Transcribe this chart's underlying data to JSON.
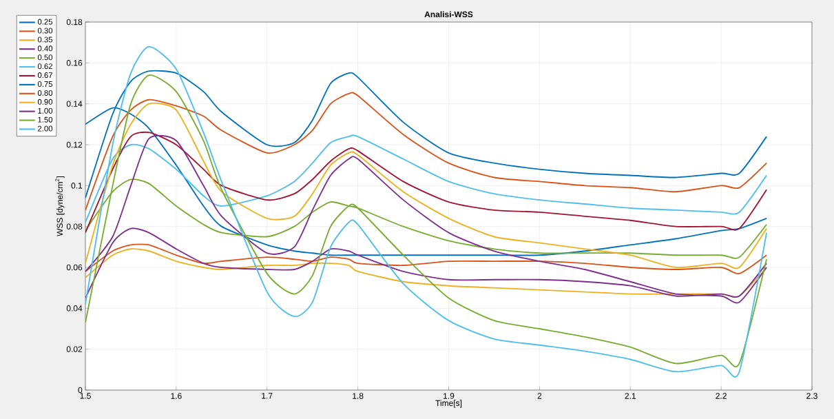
{
  "chart_data": {
    "type": "line",
    "title": "**Analisi-WSS**",
    "xlabel": "Time[s]",
    "ylabel": "WSS [dyne/cm$^{2}$]",
    "x": [
      1.5,
      1.53,
      1.55,
      1.57,
      1.6,
      1.63,
      1.65,
      1.7,
      1.73,
      1.75,
      1.77,
      1.79,
      1.8,
      1.85,
      1.9,
      1.95,
      2.0,
      2.05,
      2.1,
      2.15,
      2.2,
      2.22,
      2.25
    ],
    "xlim": [
      1.5,
      2.3
    ],
    "xticks": [
      1.5,
      1.6,
      1.7,
      1.8,
      1.9,
      2,
      2.1,
      2.2,
      2.3
    ],
    "ylim": [
      0,
      0.18
    ],
    "yticks": [
      0,
      0.02,
      0.04,
      0.06,
      0.08,
      0.1,
      0.12,
      0.14,
      0.16,
      0.18
    ],
    "grid": true,
    "legend": "top left",
    "series": [
      {
        "name": "0.25",
        "color": "#0072bd",
        "values": [
          0.13,
          0.138,
          0.135,
          0.128,
          0.11,
          0.09,
          0.08,
          0.071,
          0.068,
          0.067,
          0.066,
          0.066,
          0.066,
          0.066,
          0.066,
          0.066,
          0.066,
          0.068,
          0.071,
          0.074,
          0.078,
          0.079,
          0.084
        ]
      },
      {
        "name": "0.30",
        "color": "#d95319",
        "values": [
          0.058,
          0.068,
          0.071,
          0.071,
          0.066,
          0.062,
          0.063,
          0.065,
          0.064,
          0.063,
          0.065,
          0.064,
          0.062,
          0.061,
          0.063,
          0.063,
          0.063,
          0.062,
          0.06,
          0.059,
          0.06,
          0.057,
          0.066
        ]
      },
      {
        "name": "0.35",
        "color": "#edb120",
        "values": [
          0.055,
          0.066,
          0.069,
          0.068,
          0.063,
          0.06,
          0.059,
          0.061,
          0.061,
          0.062,
          0.062,
          0.061,
          0.058,
          0.053,
          0.051,
          0.05,
          0.049,
          0.048,
          0.047,
          0.047,
          0.047,
          0.046,
          0.06
        ]
      },
      {
        "name": "0.40",
        "color": "#7e2f8e",
        "values": [
          0.045,
          0.072,
          0.079,
          0.077,
          0.069,
          0.062,
          0.06,
          0.059,
          0.059,
          0.063,
          0.069,
          0.068,
          0.066,
          0.058,
          0.054,
          0.054,
          0.054,
          0.053,
          0.051,
          0.046,
          0.047,
          0.046,
          0.062
        ]
      },
      {
        "name": "0.50",
        "color": "#77ac30",
        "values": [
          0.078,
          0.097,
          0.103,
          0.101,
          0.09,
          0.081,
          0.077,
          0.075,
          0.08,
          0.087,
          0.092,
          0.09,
          0.089,
          0.08,
          0.073,
          0.069,
          0.067,
          0.067,
          0.067,
          0.066,
          0.066,
          0.065,
          0.081
        ]
      },
      {
        "name": "0.62",
        "color": "#4dbeee",
        "values": [
          0.082,
          0.113,
          0.12,
          0.118,
          0.108,
          0.095,
          0.09,
          0.095,
          0.102,
          0.111,
          0.121,
          0.124,
          0.124,
          0.113,
          0.102,
          0.096,
          0.093,
          0.091,
          0.089,
          0.088,
          0.087,
          0.087,
          0.105
        ]
      },
      {
        "name": "0.67",
        "color": "#a2142f",
        "values": [
          0.077,
          0.108,
          0.124,
          0.126,
          0.12,
          0.108,
          0.1,
          0.093,
          0.096,
          0.103,
          0.112,
          0.118,
          0.117,
          0.102,
          0.092,
          0.088,
          0.087,
          0.085,
          0.083,
          0.08,
          0.08,
          0.079,
          0.098
        ]
      },
      {
        "name": "0.75",
        "color": "#0072bd",
        "values": [
          0.094,
          0.135,
          0.151,
          0.156,
          0.155,
          0.146,
          0.136,
          0.12,
          0.121,
          0.132,
          0.15,
          0.155,
          0.153,
          0.131,
          0.116,
          0.111,
          0.108,
          0.106,
          0.105,
          0.104,
          0.106,
          0.106,
          0.124
        ]
      },
      {
        "name": "0.80",
        "color": "#d95319",
        "values": [
          0.088,
          0.124,
          0.137,
          0.142,
          0.139,
          0.134,
          0.127,
          0.116,
          0.12,
          0.127,
          0.14,
          0.145,
          0.144,
          0.125,
          0.111,
          0.104,
          0.102,
          0.1,
          0.099,
          0.097,
          0.1,
          0.099,
          0.111
        ]
      },
      {
        "name": "0.90",
        "color": "#edb120",
        "values": [
          0.062,
          0.11,
          0.13,
          0.14,
          0.137,
          0.112,
          0.097,
          0.084,
          0.085,
          0.096,
          0.11,
          0.116,
          0.115,
          0.097,
          0.084,
          0.075,
          0.072,
          0.069,
          0.066,
          0.06,
          0.062,
          0.06,
          0.079
        ]
      },
      {
        "name": "1.00",
        "color": "#7e2f8e",
        "values": [
          0.058,
          0.075,
          0.1,
          0.123,
          0.122,
          0.1,
          0.085,
          0.067,
          0.07,
          0.088,
          0.105,
          0.113,
          0.113,
          0.093,
          0.077,
          0.068,
          0.063,
          0.059,
          0.053,
          0.047,
          0.046,
          0.043,
          0.06
        ]
      },
      {
        "name": "1.50",
        "color": "#77ac30",
        "values": [
          0.033,
          0.1,
          0.14,
          0.154,
          0.146,
          0.122,
          0.098,
          0.057,
          0.047,
          0.056,
          0.08,
          0.09,
          0.089,
          0.066,
          0.045,
          0.034,
          0.03,
          0.026,
          0.021,
          0.013,
          0.017,
          0.013,
          0.064
        ]
      },
      {
        "name": "2.00",
        "color": "#4dbeee",
        "values": [
          0.042,
          0.12,
          0.155,
          0.168,
          0.157,
          0.126,
          0.102,
          0.048,
          0.036,
          0.043,
          0.07,
          0.082,
          0.081,
          0.052,
          0.034,
          0.025,
          0.022,
          0.019,
          0.015,
          0.009,
          0.012,
          0.009,
          0.077
        ]
      }
    ]
  }
}
